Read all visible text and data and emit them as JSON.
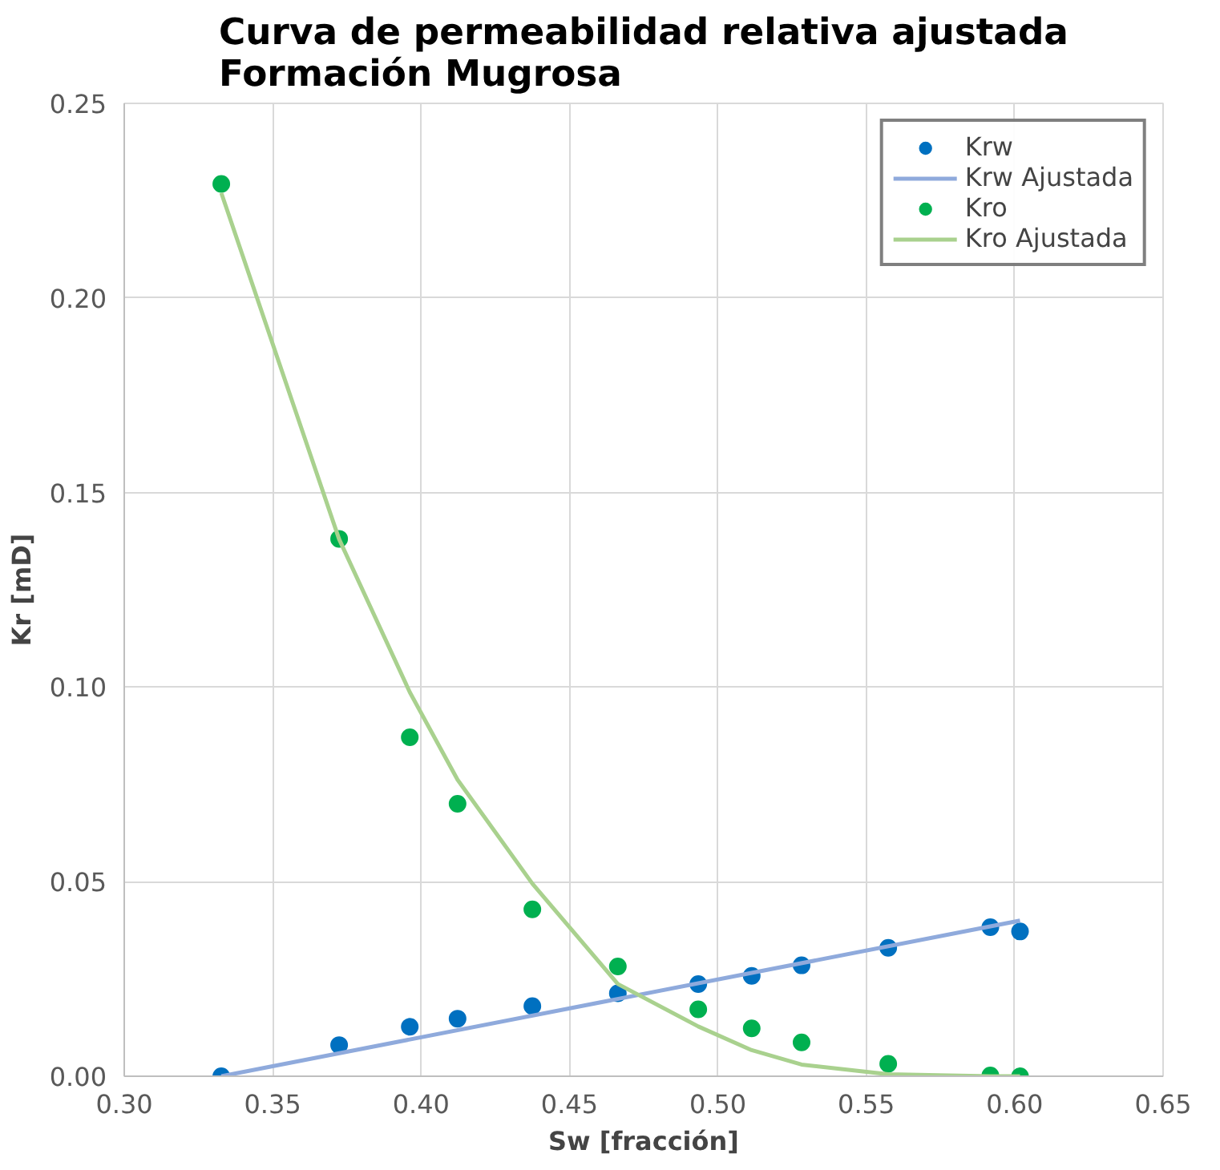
{
  "chart_data": {
    "type": "scatter",
    "title": "Curva de permeabilidad relativa ajustada\nFormación Mugrosa",
    "xlabel": "Sw [fracción]",
    "ylabel": "Kr [mD]",
    "xlim": [
      0.3,
      0.65
    ],
    "xticks": [
      {
        "value": 0.3,
        "label": "0.30"
      },
      {
        "value": 0.35,
        "label": "0.35"
      },
      {
        "value": 0.4,
        "label": "0.40"
      },
      {
        "value": 0.45,
        "label": "0.45"
      },
      {
        "value": 0.5,
        "label": "0.50"
      },
      {
        "value": 0.55,
        "label": "0.55"
      },
      {
        "value": 0.6,
        "label": "0.60"
      },
      {
        "value": 0.65,
        "label": "0.65"
      }
    ],
    "ylim": [
      0,
      0.25
    ],
    "yticks": [
      {
        "value": 0,
        "label": "0.00"
      },
      {
        "value": 0.05,
        "label": "0.05"
      },
      {
        "value": 0.1,
        "label": "0.10"
      },
      {
        "value": 0.15,
        "label": "0.15"
      },
      {
        "value": 0.2,
        "label": "0.20"
      },
      {
        "value": 0.25,
        "label": "0.25"
      }
    ],
    "grid": true,
    "legend": "top right",
    "x": [
      0.3327,
      0.3724,
      0.3962,
      0.4123,
      0.4375,
      0.4663,
      0.4934,
      0.5114,
      0.5282,
      0.5574,
      0.5918,
      0.6018
    ],
    "series": [
      {
        "name": "Krw",
        "marker": "circle",
        "color": "#0070c0",
        "values": [
          0,
          0.008,
          0.0127,
          0.0148,
          0.018,
          0.0213,
          0.0237,
          0.0258,
          0.0285,
          0.033,
          0.0383,
          0.0372
        ]
      },
      {
        "name": "Krw Ajustada",
        "type": "line",
        "color": "#8faadc",
        "x": [
          0.3327,
          0.6018
        ],
        "values": [
          0,
          0.04
        ]
      },
      {
        "name": "Kro",
        "marker": "circle",
        "color": "#00b050",
        "values": [
          0.2293,
          0.1381,
          0.0871,
          0.07,
          0.0429,
          0.0282,
          0.0172,
          0.0123,
          0.0087,
          0.0032,
          0.0002,
          0
        ]
      },
      {
        "name": "Kro Ajustada",
        "type": "line",
        "color": "#a9d18e",
        "values": [
          0.227,
          0.138,
          0.0987,
          0.0762,
          0.0495,
          0.0237,
          0.0128,
          0.0067,
          0.003,
          0.0005,
          0,
          0
        ]
      }
    ]
  }
}
